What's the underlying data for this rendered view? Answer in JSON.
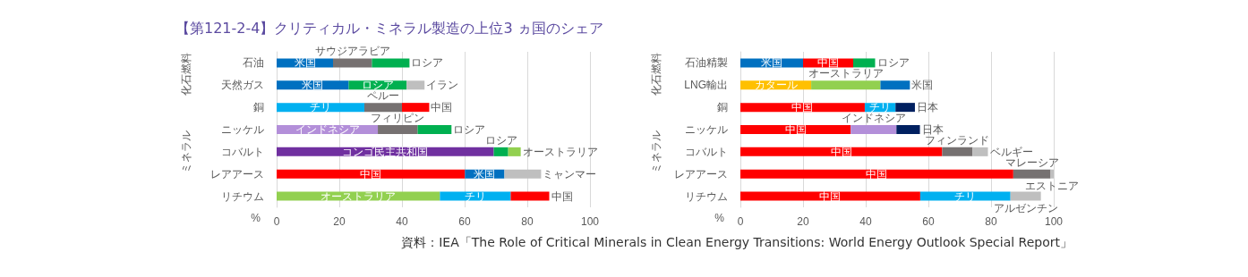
{
  "chart_data": [
    {
      "type": "bar",
      "title": "【第121-2-4】クリティカル・ミネラル製造の上位3 ヵ国のシェア",
      "xlabel": "%",
      "annotations": [
        "化石燃料",
        "ミネラル"
      ],
      "stacked": true,
      "orientation": "horizontal",
      "grid": "x",
      "xlim": [
        0,
        100
      ],
      "xticks": [
        0,
        20,
        40,
        60,
        80,
        100
      ],
      "categories": [
        "石油",
        "天然ガス",
        "銅",
        "ニッケル",
        "コバルト",
        "レアアース",
        "リチウム"
      ],
      "series": [
        {
          "values": [
            18,
            23,
            28,
            32.3,
            69.3,
            60.1,
            52.1
          ],
          "colors": [
            "#0070c0",
            "#0070c0",
            "#00b0f0",
            "#b38fd9",
            "#7030a0",
            "#ff0000",
            "#92d050"
          ],
          "value_labels": [
            "米国",
            "米国",
            "チリ",
            "インドネシア",
            "コンゴ民主共和国",
            "中国",
            "オーストラリア"
          ]
        },
        {
          "values": [
            12.4,
            18.5,
            12,
            12.7,
            4.6,
            12.6,
            22.6
          ],
          "colors": [
            "#767171",
            "#00b050",
            "#767171",
            "#767171",
            "#00b050",
            "#0070c0",
            "#00b0f0"
          ],
          "value_labels": [
            "サウジアラビア",
            "ロシア",
            "ペルー",
            "フィリピン",
            "ロシア",
            "米国",
            "チリ"
          ]
        },
        {
          "values": [
            12,
            5.7,
            8.7,
            10.8,
            4,
            11.7,
            12.3
          ],
          "colors": [
            "#00b050",
            "#bfbfbf",
            "#ff0000",
            "#00b050",
            "#92d050",
            "#bfbfbf",
            "#ff0000"
          ],
          "value_labels": [
            "ロシア",
            "イラン",
            "中国",
            "ロシア",
            "オーストラリア",
            "ミャンマー",
            "中国"
          ]
        }
      ]
    },
    {
      "type": "bar",
      "xlabel": "%",
      "annotations": [
        "化石燃料",
        "ミネラル",
        "資料：IEA「The Role of Critical Minerals in Clean Energy Transitions: World Energy Outlook Special Report」"
      ],
      "stacked": true,
      "orientation": "horizontal",
      "grid": "x",
      "xlim": [
        0,
        100
      ],
      "xticks": [
        0,
        20,
        40,
        60,
        80,
        100
      ],
      "categories": [
        "石油精製",
        "LNG輸出",
        "銅",
        "ニッケル",
        "コバルト",
        "レアアース",
        "リチウム"
      ],
      "series": [
        {
          "values": [
            20,
            22.6,
            39.7,
            35.2,
            64.4,
            87.1,
            57.4
          ],
          "colors": [
            "#0070c0",
            "#ffc000",
            "#ff0000",
            "#ff0000",
            "#ff0000",
            "#ff0000",
            "#ff0000"
          ],
          "value_labels": [
            "米国",
            "カタール",
            "中国",
            "中国",
            "中国",
            "中国",
            "中国"
          ]
        },
        {
          "values": [
            16,
            22.1,
            9.8,
            14.6,
            9.7,
            11.9,
            28.8
          ],
          "colors": [
            "#ff0000",
            "#92d050",
            "#00b0f0",
            "#b38fd9",
            "#767171",
            "#767171",
            "#00b0f0"
          ],
          "value_labels": [
            "中国",
            "オーストラリア",
            "チリ",
            "インドネシア",
            "フィンランド",
            "マレーシア",
            "チリ"
          ]
        },
        {
          "values": [
            7,
            9.4,
            6.2,
            7.5,
            4.9,
            1,
            9.7
          ],
          "colors": [
            "#00b050",
            "#0070c0",
            "#002060",
            "#002060",
            "#bfbfbf",
            "#bfbfbf",
            "#bfbfbf"
          ],
          "value_labels": [
            "ロシア",
            "米国",
            "日本",
            "日本",
            "ベルギー",
            "エストニア",
            "アルゼンチン"
          ]
        }
      ]
    }
  ]
}
